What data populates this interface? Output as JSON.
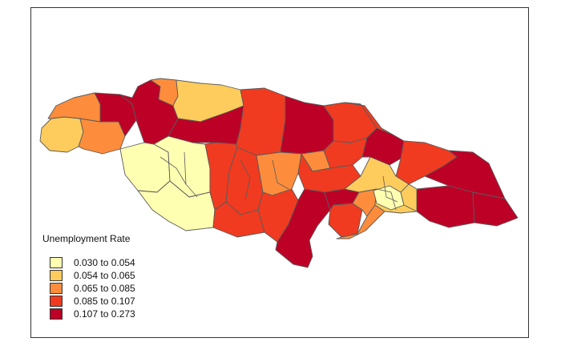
{
  "legend": {
    "title": "Unemployment Rate",
    "classes": [
      {
        "label": "0.030 to 0.054",
        "color": "#ffffb2"
      },
      {
        "label": "0.054 to 0.065",
        "color": "#fecc5c"
      },
      {
        "label": "0.065 to 0.085",
        "color": "#fd8d3c"
      },
      {
        "label": "0.085 to 0.107",
        "color": "#f03b20"
      },
      {
        "label": "0.107 to 0.273",
        "color": "#bd0026"
      }
    ]
  },
  "regions": [
    {
      "name": "region-west-tip",
      "class": 1
    },
    {
      "name": "region-westmoreland-inland",
      "class": 2
    },
    {
      "name": "region-hanover-west",
      "class": 2
    },
    {
      "name": "region-hanover-east",
      "class": 4
    },
    {
      "name": "region-lucea-coast",
      "class": 4
    },
    {
      "name": "region-st-james-west",
      "class": 2
    },
    {
      "name": "region-st-james-east",
      "class": 1
    },
    {
      "name": "region-trelawny-west",
      "class": 4
    },
    {
      "name": "region-trelawny-central",
      "class": 3
    },
    {
      "name": "region-trelawny-east",
      "class": 4
    },
    {
      "name": "region-st-ann-west",
      "class": 3
    },
    {
      "name": "region-st-ann-central",
      "class": 3
    },
    {
      "name": "region-st-ann-east",
      "class": 3
    },
    {
      "name": "region-st-mary-west",
      "class": 2
    },
    {
      "name": "region-st-mary-central",
      "class": 4
    },
    {
      "name": "region-st-mary-east",
      "class": 3
    },
    {
      "name": "region-portland-west",
      "class": 3
    },
    {
      "name": "region-portland-east",
      "class": 4
    },
    {
      "name": "region-st-thomas",
      "class": 4
    },
    {
      "name": "region-st-thomas-south",
      "class": 4
    },
    {
      "name": "region-westmoreland-south",
      "class": 0
    },
    {
      "name": "region-st-elizabeth-north",
      "class": 0
    },
    {
      "name": "region-st-elizabeth-south",
      "class": 0
    },
    {
      "name": "region-manchester-west",
      "class": 3
    },
    {
      "name": "region-manchester-east",
      "class": 3
    },
    {
      "name": "region-manchester-south",
      "class": 3
    },
    {
      "name": "region-clarendon-north",
      "class": 2
    },
    {
      "name": "region-clarendon-central",
      "class": 3
    },
    {
      "name": "region-clarendon-south",
      "class": 4
    },
    {
      "name": "region-st-catherine-north",
      "class": 4
    },
    {
      "name": "region-st-catherine-central",
      "class": 3
    },
    {
      "name": "region-st-catherine-south",
      "class": 2
    },
    {
      "name": "region-kingston-metro",
      "class": 1
    },
    {
      "name": "region-st-andrew-north",
      "class": 0
    },
    {
      "name": "region-st-andrew-east",
      "class": 1
    },
    {
      "name": "region-portmore",
      "class": 2
    }
  ]
}
